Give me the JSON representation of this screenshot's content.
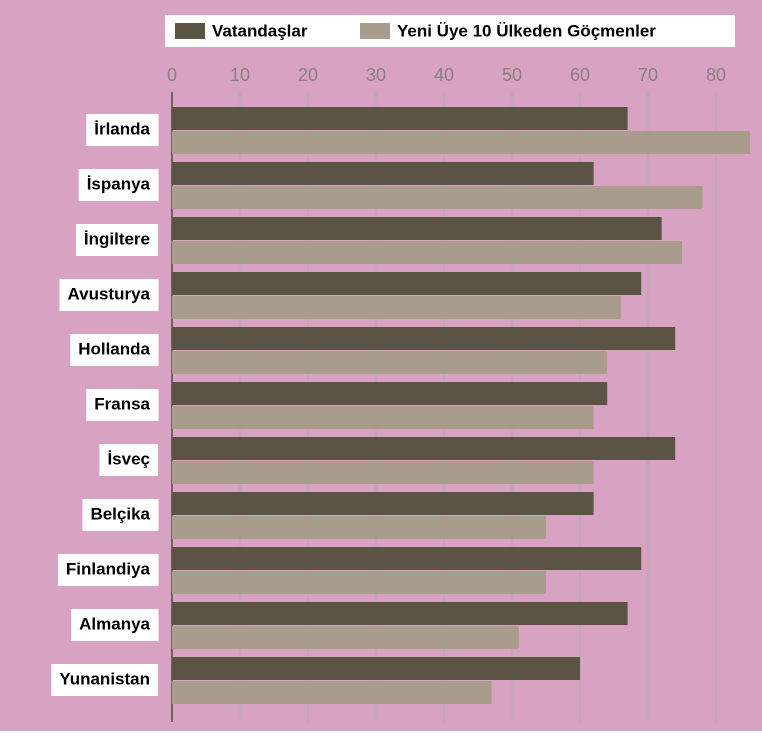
{
  "chart_data": {
    "type": "bar",
    "orientation": "horizontal",
    "categories": [
      "İrlanda",
      "İspanya",
      "İngiltere",
      "Avusturya",
      "Hollanda",
      "Fransa",
      "İsveç",
      "Belçika",
      "Finlandiya",
      "Almanya",
      "Yunanistan"
    ],
    "series": [
      {
        "name": "Vatandaşlar",
        "color": "#5b5343",
        "values": [
          67,
          62,
          72,
          69,
          74,
          64,
          74,
          62,
          69,
          67,
          60
        ]
      },
      {
        "name": "Yeni Üye 10 Ülkeden Göçmenler",
        "color": "#a99c8c",
        "values": [
          85,
          78,
          75,
          66,
          64,
          62,
          62,
          55,
          55,
          51,
          47
        ]
      }
    ],
    "xlim": [
      0,
      85
    ],
    "xticks": [
      0,
      10,
      20,
      30,
      40,
      50,
      60,
      70,
      80
    ],
    "grid": true
  }
}
